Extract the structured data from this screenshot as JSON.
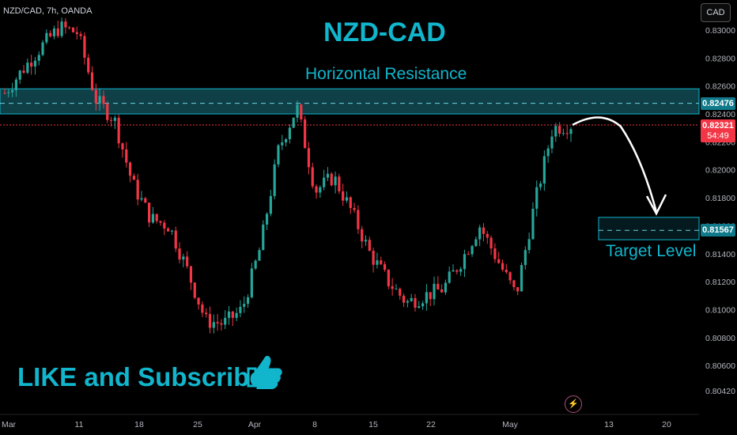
{
  "header": {
    "symbol": "NZD/CAD, 7h, OANDA",
    "currency": "CAD"
  },
  "annotations": {
    "title": "NZD-CAD",
    "resistance_label": "Horizontal Resistance",
    "target_label": "Target Level",
    "cta": "LIKE and Subscribe"
  },
  "price_tags": {
    "resistance": "0.82476",
    "last_price": "0.82321",
    "countdown": "54:49",
    "target": "0.81567"
  },
  "colors": {
    "accent": "#11b5cc",
    "up": "#26a69a",
    "down": "#f23645",
    "background": "#000000"
  },
  "icons": {
    "thumb": "thumbs-up-icon",
    "bolt": "lightning-icon"
  },
  "chart_data": {
    "type": "candlestick",
    "y_ticks": [
      "0.83000",
      "0.82800",
      "0.82600",
      "0.82400",
      "0.82200",
      "0.82000",
      "0.81800",
      "0.81600",
      "0.81400",
      "0.81200",
      "0.81000",
      "0.80800",
      "0.80600",
      "0.80420"
    ],
    "x_ticks": [
      "Mar",
      "11",
      "18",
      "25",
      "Apr",
      "8",
      "15",
      "22",
      "May",
      "13",
      "20"
    ],
    "ylim": [
      0.804,
      0.831
    ],
    "resistance_zone": [
      0.824,
      0.8258
    ],
    "resistance_level": 0.82476,
    "target_zone": [
      0.815,
      0.8166
    ],
    "target_level": 0.81567,
    "last_price": 0.82321,
    "series": [
      {
        "x": "Mar",
        "close": 0.8255
      },
      {
        "x": "Mar 4",
        "close": 0.8272
      },
      {
        "x": "Mar 7",
        "close": 0.8288
      },
      {
        "x": "Mar 11",
        "close": 0.8302
      },
      {
        "x": "Mar 14",
        "close": 0.8298
      },
      {
        "x": "Mar 16",
        "close": 0.825
      },
      {
        "x": "Mar 18",
        "close": 0.8236
      },
      {
        "x": "Mar 21",
        "close": 0.819
      },
      {
        "x": "Mar 23",
        "close": 0.8165
      },
      {
        "x": "Mar 25",
        "close": 0.816
      },
      {
        "x": "Mar 28",
        "close": 0.8128
      },
      {
        "x": "Mar 30",
        "close": 0.8092
      },
      {
        "x": "Apr",
        "close": 0.809
      },
      {
        "x": "Apr 3",
        "close": 0.81
      },
      {
        "x": "Apr 5",
        "close": 0.8145
      },
      {
        "x": "Apr 8",
        "close": 0.8215
      },
      {
        "x": "Apr 10",
        "close": 0.8245
      },
      {
        "x": "Apr 11",
        "close": 0.8185
      },
      {
        "x": "Apr 13",
        "close": 0.8195
      },
      {
        "x": "Apr 15",
        "close": 0.817
      },
      {
        "x": "Apr 17",
        "close": 0.814
      },
      {
        "x": "Apr 19",
        "close": 0.812
      },
      {
        "x": "Apr 22",
        "close": 0.8105
      },
      {
        "x": "Apr 24",
        "close": 0.811
      },
      {
        "x": "Apr 26",
        "close": 0.8115
      },
      {
        "x": "Apr 29",
        "close": 0.8135
      },
      {
        "x": "May 1",
        "close": 0.816
      },
      {
        "x": "May 3",
        "close": 0.8135
      },
      {
        "x": "May 5",
        "close": 0.811
      },
      {
        "x": "May 6",
        "close": 0.8175
      },
      {
        "x": "May 8",
        "close": 0.823
      },
      {
        "x": "May 10",
        "close": 0.82321
      }
    ]
  }
}
